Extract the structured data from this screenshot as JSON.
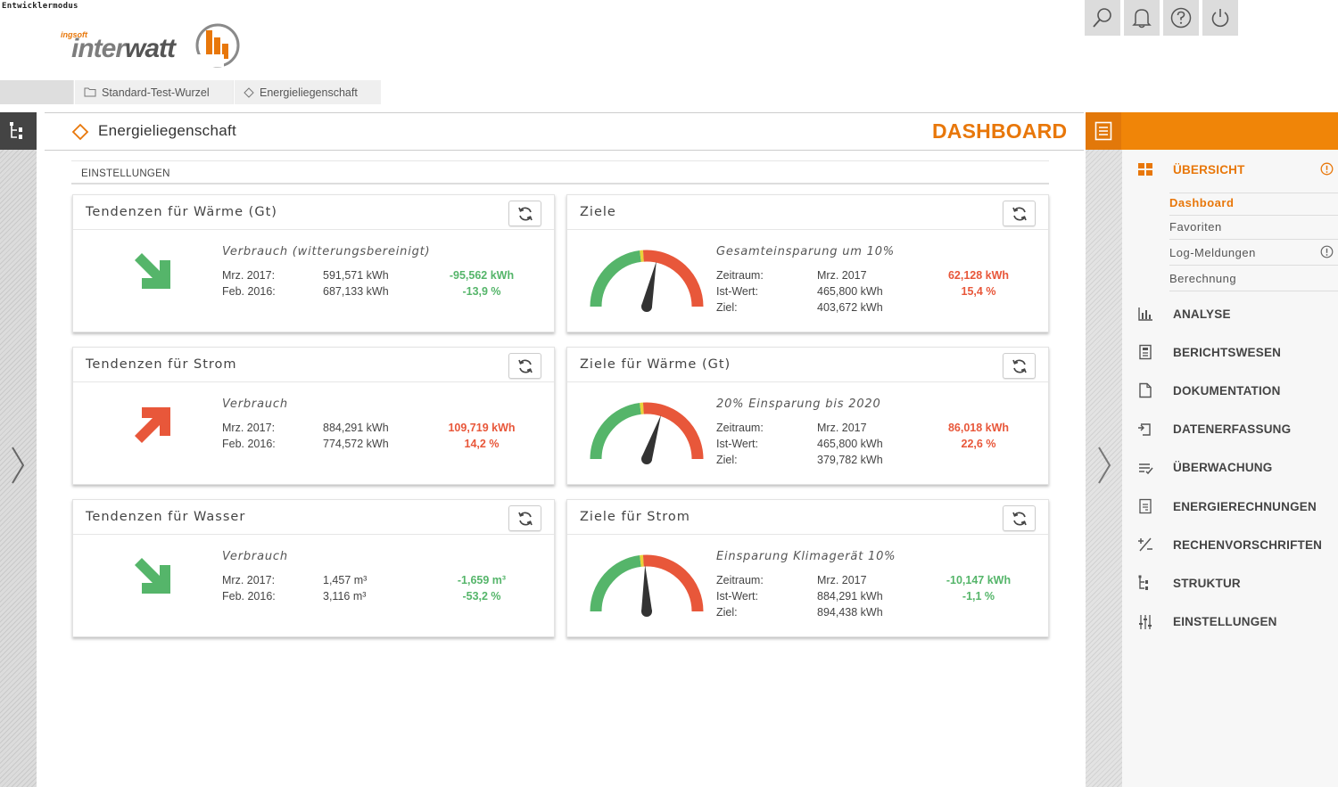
{
  "app": {
    "dev_mode": "Entwicklermodus",
    "logo_small": "ingsoft",
    "logo_word_a": "inter",
    "logo_word_b": "watt"
  },
  "toolbar": {
    "icons": [
      "search-icon",
      "bell-icon",
      "help-icon",
      "power-icon"
    ]
  },
  "breadcrumb": {
    "items": [
      {
        "label": "Standard-Test-Wurzel",
        "icon": "folder-icon"
      },
      {
        "label": "Energieliegenschaft",
        "icon": "diamond-icon"
      }
    ]
  },
  "header": {
    "title": "Energieliegenschaft",
    "view": "DASHBOARD"
  },
  "settings_label": "EINSTELLUNGEN",
  "colors": {
    "accent": "#e8770a",
    "green": "#55b56a",
    "red": "#e8573a",
    "yellow": "#e8d23a"
  },
  "tendencies": [
    {
      "title": "Tendenzen für Wärme (Gt)",
      "subtitle": "Verbrauch (witterungsbereinigt)",
      "direction": "down",
      "rows": [
        {
          "label": "Mrz. 2017:",
          "value": "591,571 kWh",
          "delta": "-95,562 kWh"
        },
        {
          "label": "Feb. 2016:",
          "value": "687,133 kWh",
          "delta": "-13,9 %"
        }
      ],
      "status": "green"
    },
    {
      "title": "Tendenzen für Strom",
      "subtitle": "Verbrauch",
      "direction": "up",
      "rows": [
        {
          "label": "Mrz. 2017:",
          "value": "884,291 kWh",
          "delta": "109,719 kWh"
        },
        {
          "label": "Feb. 2016:",
          "value": "774,572 kWh",
          "delta": "14,2 %"
        }
      ],
      "status": "red"
    },
    {
      "title": "Tendenzen für Wasser",
      "subtitle": "Verbrauch",
      "direction": "down",
      "rows": [
        {
          "label": "Mrz. 2017:",
          "value": "1,457 m³",
          "delta": "-1,659 m³"
        },
        {
          "label": "Feb. 2016:",
          "value": "3,116 m³",
          "delta": "-53,2 %"
        }
      ],
      "status": "green"
    }
  ],
  "goals": [
    {
      "title": "Ziele",
      "subtitle": "Gesamteinsparung um 10%",
      "gauge_needle_deg": 12,
      "gauge_split": 0.47,
      "rows": [
        {
          "label": "Zeitraum:",
          "value": "Mrz. 2017",
          "delta": "62,128 kWh"
        },
        {
          "label": "Ist-Wert:",
          "value": "465,800 kWh",
          "delta": "15,4 %"
        },
        {
          "label": "Ziel:",
          "value": "403,672 kWh",
          "delta": ""
        }
      ],
      "status": "red"
    },
    {
      "title": "Ziele für Wärme (Gt)",
      "subtitle": "20% Einsparung bis 2020",
      "gauge_needle_deg": 18,
      "gauge_split": 0.47,
      "rows": [
        {
          "label": "Zeitraum:",
          "value": "Mrz. 2017",
          "delta": "86,018 kWh"
        },
        {
          "label": "Ist-Wert:",
          "value": "465,800 kWh",
          "delta": "22,6 %"
        },
        {
          "label": "Ziel:",
          "value": "379,782 kWh",
          "delta": ""
        }
      ],
      "status": "red"
    },
    {
      "title": "Ziele für Strom",
      "subtitle": "Einsparung Klimagerät 10%",
      "gauge_needle_deg": -2,
      "gauge_split": 0.47,
      "rows": [
        {
          "label": "Zeitraum:",
          "value": "Mrz. 2017",
          "delta": "-10,147 kWh"
        },
        {
          "label": "Ist-Wert:",
          "value": "884,291 kWh",
          "delta": "-1,1 %"
        },
        {
          "label": "Ziel:",
          "value": "894,438 kWh",
          "delta": ""
        }
      ],
      "status": "green"
    }
  ],
  "nav": {
    "overview": "ÜBERSICHT",
    "sub": [
      "Dashboard",
      "Favoriten",
      "Log-Meldungen",
      "Berechnung"
    ],
    "items": [
      {
        "label": "ANALYSE",
        "icon": "bar-chart-icon"
      },
      {
        "label": "BERICHTSWESEN",
        "icon": "report-icon"
      },
      {
        "label": "DOKUMENTATION",
        "icon": "document-icon"
      },
      {
        "label": "DATENERFASSUNG",
        "icon": "data-entry-icon"
      },
      {
        "label": "ÜBERWACHUNG",
        "icon": "monitoring-icon"
      },
      {
        "label": "ENERGIERECHNUNGEN",
        "icon": "invoice-icon"
      },
      {
        "label": "RECHENVORSCHRIFTEN",
        "icon": "formula-icon"
      },
      {
        "label": "STRUKTUR",
        "icon": "structure-icon"
      },
      {
        "label": "EINSTELLUNGEN",
        "icon": "sliders-icon"
      }
    ]
  }
}
